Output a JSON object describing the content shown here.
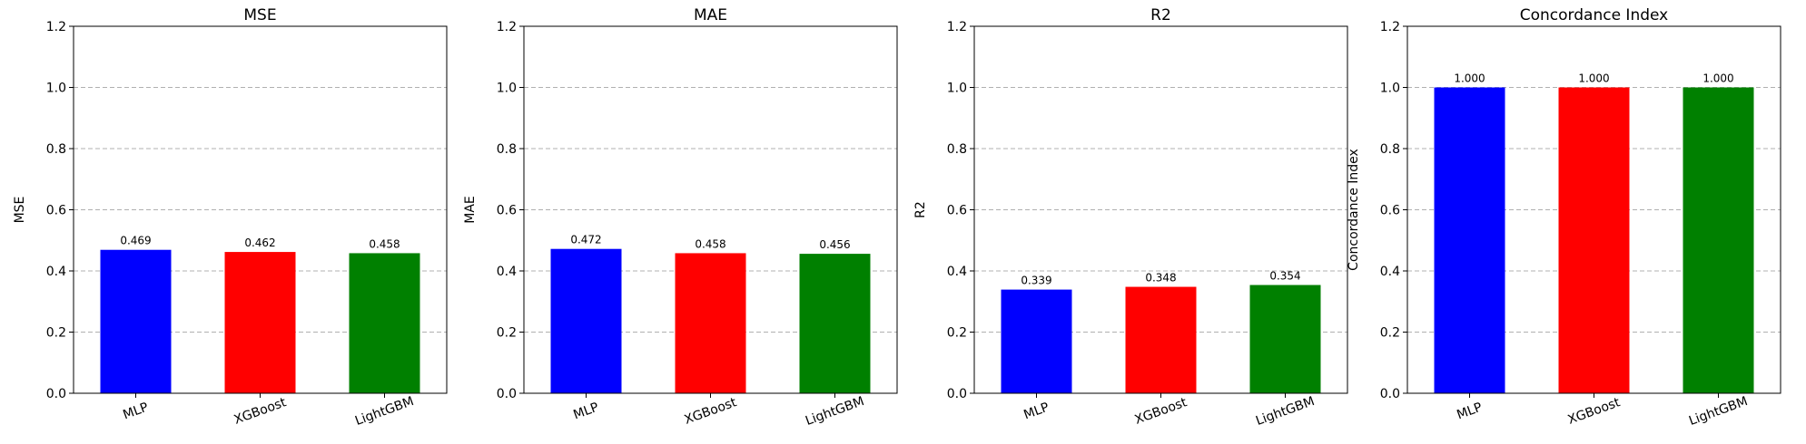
{
  "chart_data": [
    {
      "type": "bar",
      "title": "MSE",
      "ylabel": "MSE",
      "categories": [
        "MLP",
        "XGBoost",
        "LightGBM"
      ],
      "values": [
        0.469,
        0.462,
        0.458
      ],
      "value_labels": [
        "0.469",
        "0.462",
        "0.458"
      ],
      "colors": [
        "#0000ff",
        "#ff0000",
        "#008000"
      ],
      "ylim": [
        0,
        1.2
      ],
      "yticks": [
        "0.0",
        "0.2",
        "0.4",
        "0.6",
        "0.8",
        "1.0",
        "1.2"
      ],
      "grid": true
    },
    {
      "type": "bar",
      "title": "MAE",
      "ylabel": "MAE",
      "categories": [
        "MLP",
        "XGBoost",
        "LightGBM"
      ],
      "values": [
        0.472,
        0.458,
        0.456
      ],
      "value_labels": [
        "0.472",
        "0.458",
        "0.456"
      ],
      "colors": [
        "#0000ff",
        "#ff0000",
        "#008000"
      ],
      "ylim": [
        0,
        1.2
      ],
      "yticks": [
        "0.0",
        "0.2",
        "0.4",
        "0.6",
        "0.8",
        "1.0",
        "1.2"
      ],
      "grid": true
    },
    {
      "type": "bar",
      "title": "R2",
      "ylabel": "R2",
      "categories": [
        "MLP",
        "XGBoost",
        "LightGBM"
      ],
      "values": [
        0.339,
        0.348,
        0.354
      ],
      "value_labels": [
        "0.339",
        "0.348",
        "0.354"
      ],
      "colors": [
        "#0000ff",
        "#ff0000",
        "#008000"
      ],
      "ylim": [
        0,
        1.2
      ],
      "yticks": [
        "0.0",
        "0.2",
        "0.4",
        "0.6",
        "0.8",
        "1.0",
        "1.2"
      ],
      "grid": true
    },
    {
      "type": "bar",
      "title": "Concordance Index",
      "ylabel": "Concordance Index",
      "categories": [
        "MLP",
        "XGBoost",
        "LightGBM"
      ],
      "values": [
        1.0,
        1.0,
        1.0
      ],
      "value_labels": [
        "1.000",
        "1.000",
        "1.000"
      ],
      "colors": [
        "#0000ff",
        "#ff0000",
        "#008000"
      ],
      "ylim": [
        0,
        1.2
      ],
      "yticks": [
        "0.0",
        "0.2",
        "0.4",
        "0.6",
        "0.8",
        "1.0",
        "1.2"
      ],
      "grid": true
    }
  ]
}
